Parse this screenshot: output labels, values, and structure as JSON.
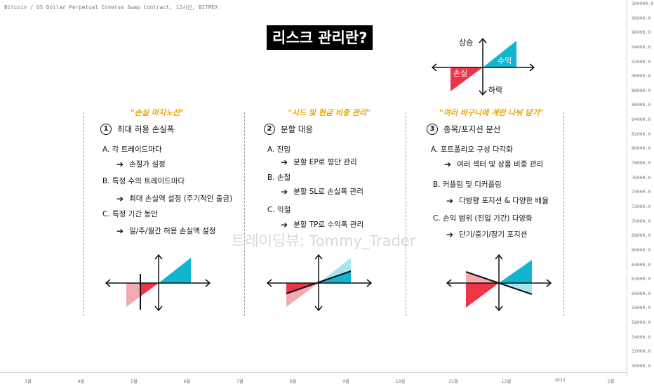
{
  "symbol_title": "Bitcoin / US Dollar Perpetual Inverse Swap Contract, 12시간, BITMEX",
  "main_title": "리스크 관리란?",
  "watermark": "트레이딩뷰: Tommy_Trader",
  "legend_diagram": {
    "up_label": "상승",
    "down_label": "하락",
    "profit_label": "수익",
    "loss_label": "손실"
  },
  "columns": [
    {
      "title": "\"손실 마지노선\"",
      "section_number": "1",
      "section_title": "최대 허용 손실폭",
      "items": [
        {
          "label": "A. 각 트레이드마다",
          "sub": "손절가 설정"
        },
        {
          "label": "B. 특정 수의 트레이드마다",
          "sub": "최대 손실액 설정 (주기적인 출금)"
        },
        {
          "label": "C. 특정 기간 동안",
          "sub": "일/주/월간 허용 손실액 설정"
        }
      ]
    },
    {
      "title": "\"시드 및 현금 비중 관리\"",
      "section_number": "2",
      "section_title": "분할 대응",
      "items": [
        {
          "label": "A. 진입",
          "sub": "분할 EP로 평단 관리"
        },
        {
          "label": "B. 손절",
          "sub": "분할 SL로 손실폭 관리"
        },
        {
          "label": "C. 익절",
          "sub": "분할 TP로 수익폭 관리"
        }
      ]
    },
    {
      "title": "\"여러 바구니에 계란 나눠 담기\"",
      "section_number": "3",
      "section_title": "종목/포지션 분산",
      "items": [
        {
          "label": "A. 포트폴리오 구성 다각화",
          "sub": "여러 섹터 및 상품 비중 관리"
        },
        {
          "label": "B. 커플링 및 디커플링",
          "sub": "다방향 포지션 & 다양한 배율"
        },
        {
          "label": "C. 손익 범위 (진입 기간) 다양화",
          "sub": "단기/중기/장기 포지션"
        }
      ]
    }
  ],
  "chart_data": {
    "type": "price-axis-chart",
    "y_axis_ticks": [
      "100000.0",
      "98000.0",
      "96000.0",
      "94000.0",
      "92000.0",
      "90000.0",
      "88000.0",
      "86000.0",
      "84000.0",
      "82000.0",
      "80000.0",
      "78000.0",
      "76000.0",
      "74000.0",
      "72000.0",
      "70000.0",
      "68000.0",
      "66000.0",
      "64000.0",
      "62000.0",
      "60000.0",
      "58000.0",
      "56000.0",
      "54000.0",
      "52000.0",
      "50000.0"
    ],
    "ylim": [
      49000,
      100000
    ],
    "x_axis_ticks": [
      "3월",
      "4월",
      "5월",
      "6월",
      "7월",
      "8월",
      "9월",
      "10월",
      "11월",
      "12월",
      "2022",
      "2월"
    ],
    "series": []
  },
  "colors": {
    "profit": "#12b5cf",
    "profit_light": "#a8e6ef",
    "loss": "#ee3548",
    "loss_light": "#f5aab2",
    "title_accent": "#f0a500"
  }
}
